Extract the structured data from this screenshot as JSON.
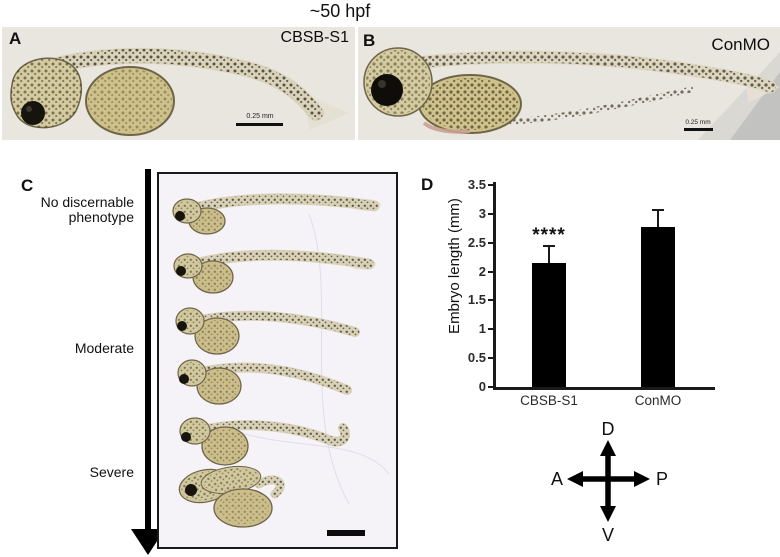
{
  "figure_title": "~50 hpf",
  "panel_a": {
    "label": "A",
    "condition": "CBSB-S1",
    "scale_bar_label": "0.25 mm"
  },
  "panel_b": {
    "label": "B",
    "condition": "ConMO",
    "scale_bar_label": "0.25 mm"
  },
  "panel_c": {
    "label": "C",
    "severity_scale": [
      "No discernable phenotype",
      "Moderate",
      "Severe"
    ]
  },
  "panel_d": {
    "label": "D"
  },
  "orientation_compass": {
    "top": "D",
    "bottom": "V",
    "left": "A",
    "right": "P"
  },
  "chart_data": {
    "type": "bar",
    "title": "",
    "categories": [
      "CBSB-S1",
      "ConMO"
    ],
    "values": [
      2.15,
      2.77
    ],
    "error_plus": [
      0.31,
      0.31
    ],
    "significance": {
      "marker": "****",
      "category": "CBSB-S1"
    },
    "xlabel": "",
    "ylabel": "Embryo length (mm)",
    "ylim": [
      0,
      3.5
    ],
    "yticks": [
      0,
      0.5,
      1,
      1.5,
      2,
      2.5,
      3,
      3.5
    ],
    "bar_color": "#000000",
    "grid": false,
    "legend": false
  }
}
